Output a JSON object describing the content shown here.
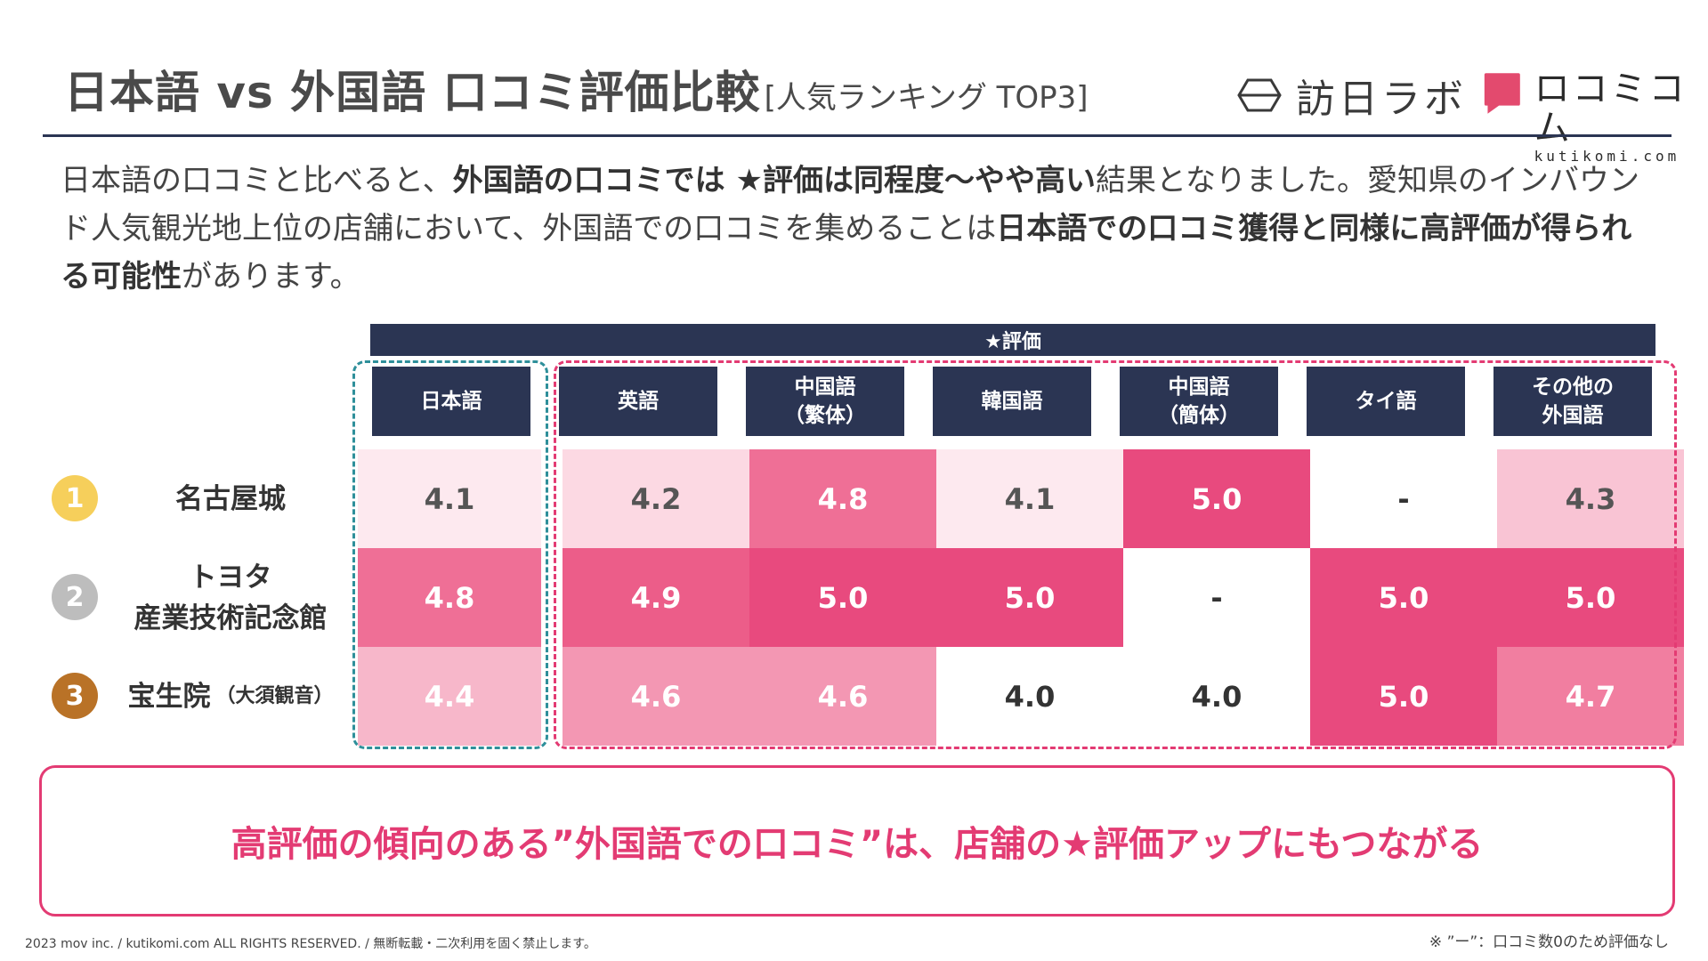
{
  "header": {
    "title": "日本語 vs 外国語 口コミ評価比較",
    "subtitle": "[人気ランキング TOP3]",
    "logo1_text": "訪日ラボ",
    "logo2_brand": "ロコミコム",
    "logo2_en": "kutikomi.com"
  },
  "intro": {
    "t1": "日本語の口コミと比べると、",
    "b1": "外国語の口コミでは ★評価は同程度〜やや高い",
    "t2": "結果となりました。愛知県のインバウンド人気観光地上位の店舗において、外国語での口コミを集めることは",
    "b2": "日本語での口コミ獲得と同様に高評価が得られる可能性",
    "t3": "があります。"
  },
  "table": {
    "band_label": "★評価",
    "columns": [
      {
        "label": "日本語"
      },
      {
        "label": "英語"
      },
      {
        "label": "中国語\n（繁体）"
      },
      {
        "label": "韓国語"
      },
      {
        "label": "中国語\n（簡体）"
      },
      {
        "label": "タイ語"
      },
      {
        "label": "その他の\n外国語"
      }
    ],
    "rows": [
      {
        "rank": "1",
        "name": "名古屋城",
        "name_small": "",
        "values": [
          "4.1",
          "4.2",
          "4.8",
          "4.1",
          "5.0",
          "-",
          "4.3"
        ]
      },
      {
        "rank": "2",
        "name": "トヨタ\n産業技術記念館",
        "name_small": "",
        "values": [
          "4.8",
          "4.9",
          "5.0",
          "5.0",
          "-",
          "5.0",
          "5.0"
        ]
      },
      {
        "rank": "3",
        "name": "宝生院",
        "name_small": "（大須観音）",
        "values": [
          "4.4",
          "4.6",
          "4.6",
          "4.0",
          "4.0",
          "5.0",
          "4.7"
        ]
      }
    ]
  },
  "colors": {
    "navy": "#2b3553",
    "gold": "#f6cf5b",
    "silver": "#bdbdbd",
    "bronze": "#b97227",
    "teal_dash": "#2e8f9a",
    "pink_dash": "#e33b73",
    "accent": "#e33b73"
  },
  "callout": "高評価の傾向のある”外国語での口コミ”は、店舗の★評価アップにもつながる",
  "footer": "2023 mov inc. / kutikomi.com ALL RIGHTS RESERVED. / 無断転載・二次利用を固く禁止します。",
  "note": "※ ”ー”：口コミ数0のため評価なし"
}
